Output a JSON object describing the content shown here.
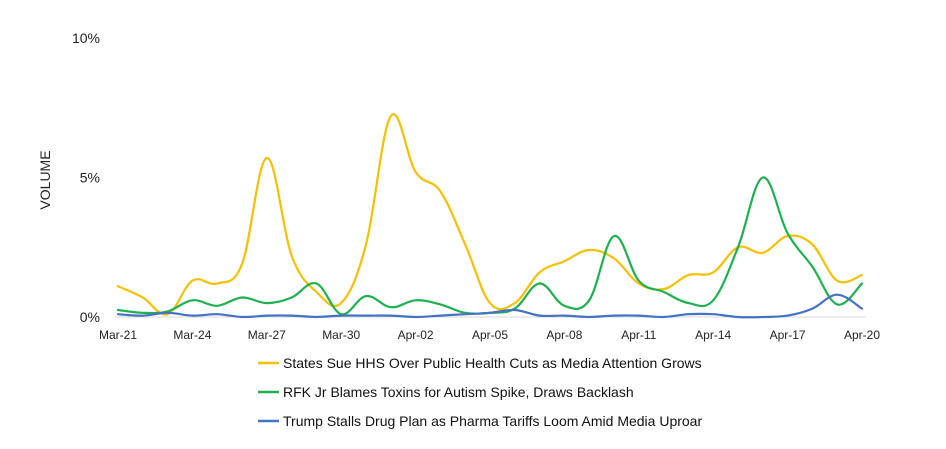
{
  "chart_data": {
    "type": "line",
    "ylabel": "VOLUME",
    "xlabel": "",
    "title": "",
    "ylim": [
      0,
      10
    ],
    "y_unit": "%",
    "yticks": [
      "0%",
      "5%",
      "10%"
    ],
    "x": [
      "Mar-21",
      "Mar-22",
      "Mar-23",
      "Mar-24",
      "Mar-25",
      "Mar-26",
      "Mar-27",
      "Mar-28",
      "Mar-29",
      "Mar-30",
      "Mar-31",
      "Apr-01",
      "Apr-02",
      "Apr-03",
      "Apr-04",
      "Apr-05",
      "Apr-06",
      "Apr-07",
      "Apr-08",
      "Apr-09",
      "Apr-10",
      "Apr-11",
      "Apr-12",
      "Apr-13",
      "Apr-14",
      "Apr-15",
      "Apr-16",
      "Apr-17",
      "Apr-18",
      "Apr-19",
      "Apr-20"
    ],
    "xtick_labels": [
      "Mar-21",
      "Mar-24",
      "Mar-27",
      "Mar-30",
      "Apr-02",
      "Apr-05",
      "Apr-08",
      "Apr-11",
      "Apr-14",
      "Apr-17",
      "Apr-20"
    ],
    "legend_position": "bottom",
    "grid": false,
    "series": [
      {
        "name": "States Sue HHS Over Public Health Cuts as Media Attention Grows",
        "color": "#F5C000",
        "values": [
          1.1,
          0.7,
          0.1,
          1.3,
          1.2,
          1.9,
          5.7,
          2.2,
          0.9,
          0.5,
          2.6,
          7.2,
          5.2,
          4.5,
          2.6,
          0.5,
          0.5,
          1.6,
          2.0,
          2.4,
          2.1,
          1.2,
          1.0,
          1.5,
          1.6,
          2.5,
          2.3,
          2.9,
          2.6,
          1.3,
          1.5
        ]
      },
      {
        "name": "RFK Jr Blames Toxins for Autism Spike, Draws Backlash",
        "color": "#1EB050",
        "values": [
          0.25,
          0.15,
          0.2,
          0.6,
          0.4,
          0.7,
          0.5,
          0.7,
          1.2,
          0.1,
          0.75,
          0.35,
          0.6,
          0.45,
          0.15,
          0.15,
          0.3,
          1.2,
          0.4,
          0.6,
          2.9,
          1.3,
          0.9,
          0.5,
          0.6,
          2.5,
          5.0,
          3.0,
          1.8,
          0.45,
          1.2
        ]
      },
      {
        "name": "Trump Stalls Drug Plan as Pharma Tariffs Loom Amid Media Uproar",
        "color": "#4472C4",
        "values": [
          0.1,
          0.05,
          0.15,
          0.05,
          0.1,
          0.0,
          0.05,
          0.05,
          0.0,
          0.05,
          0.05,
          0.05,
          0.0,
          0.05,
          0.1,
          0.15,
          0.25,
          0.05,
          0.05,
          0.0,
          0.05,
          0.05,
          0.0,
          0.1,
          0.1,
          0.0,
          0.0,
          0.05,
          0.3,
          0.8,
          0.3
        ]
      }
    ]
  }
}
